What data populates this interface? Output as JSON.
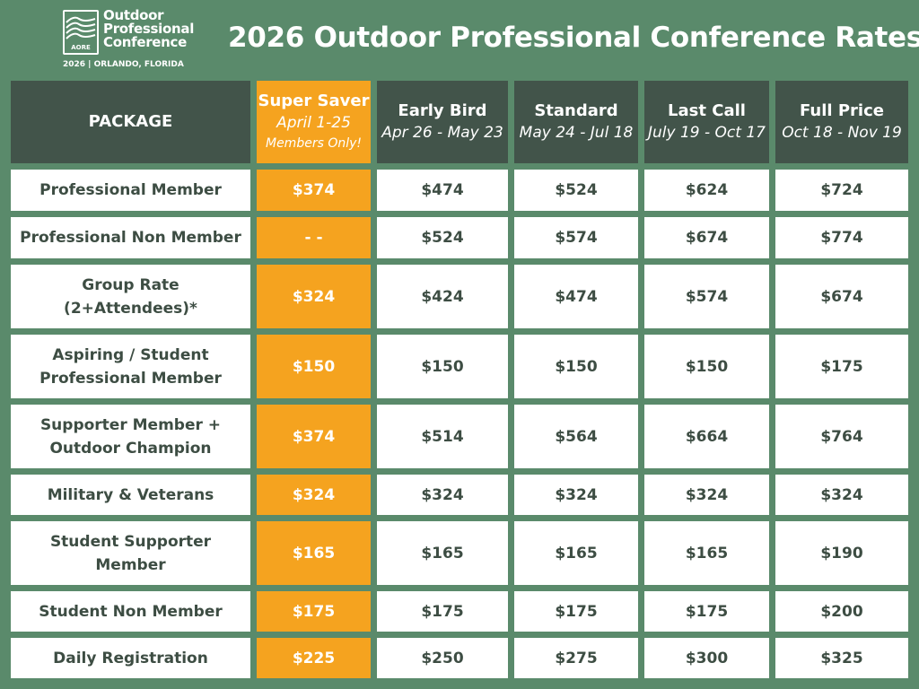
{
  "logo": {
    "abbr": "AORE",
    "name_lines": [
      "Outdoor",
      "Professional",
      "Conference"
    ],
    "subtitle": "2026 | ORLANDO, FLORIDA"
  },
  "title": "2026 Outdoor Professional Conference Rates",
  "colors": {
    "background": "#5a8a6b",
    "header": "#42544a",
    "highlight": "#f5a31f",
    "text": "#3d4d43"
  },
  "columns": [
    {
      "label": "PACKAGE"
    },
    {
      "label": "Super Saver",
      "dates": "April 1-25",
      "note": "Members Only!"
    },
    {
      "label": "Early Bird",
      "dates": "Apr 26 - May 23"
    },
    {
      "label": "Standard",
      "dates": "May 24 - Jul 18"
    },
    {
      "label": "Last Call",
      "dates": "July 19 - Oct 17"
    },
    {
      "label": "Full Price",
      "dates": "Oct 18 - Nov 19"
    }
  ],
  "rows": [
    {
      "package": [
        "Professional Member"
      ],
      "prices": [
        "$374",
        "$474",
        "$524",
        "$624",
        "$724"
      ]
    },
    {
      "package": [
        "Professional Non Member"
      ],
      "prices": [
        "- -",
        "$524",
        "$574",
        "$674",
        "$774"
      ]
    },
    {
      "package": [
        "Group Rate",
        "(2+Attendees)*"
      ],
      "prices": [
        "$324",
        "$424",
        "$474",
        "$574",
        "$674"
      ]
    },
    {
      "package": [
        "Aspiring / Student",
        "Professional Member"
      ],
      "prices": [
        "$150",
        "$150",
        "$150",
        "$150",
        "$175"
      ]
    },
    {
      "package": [
        "Supporter Member +",
        "Outdoor Champion"
      ],
      "prices": [
        "$374",
        "$514",
        "$564",
        "$664",
        "$764"
      ]
    },
    {
      "package": [
        "Military & Veterans"
      ],
      "prices": [
        "$324",
        "$324",
        "$324",
        "$324",
        "$324"
      ]
    },
    {
      "package": [
        "Student Supporter",
        "Member"
      ],
      "prices": [
        "$165",
        "$165",
        "$165",
        "$165",
        "$190"
      ]
    },
    {
      "package": [
        "Student Non Member"
      ],
      "prices": [
        "$175",
        "$175",
        "$175",
        "$175",
        "$200"
      ]
    },
    {
      "package": [
        "Daily Registration"
      ],
      "prices": [
        "$225",
        "$250",
        "$275",
        "$300",
        "$325"
      ]
    }
  ]
}
